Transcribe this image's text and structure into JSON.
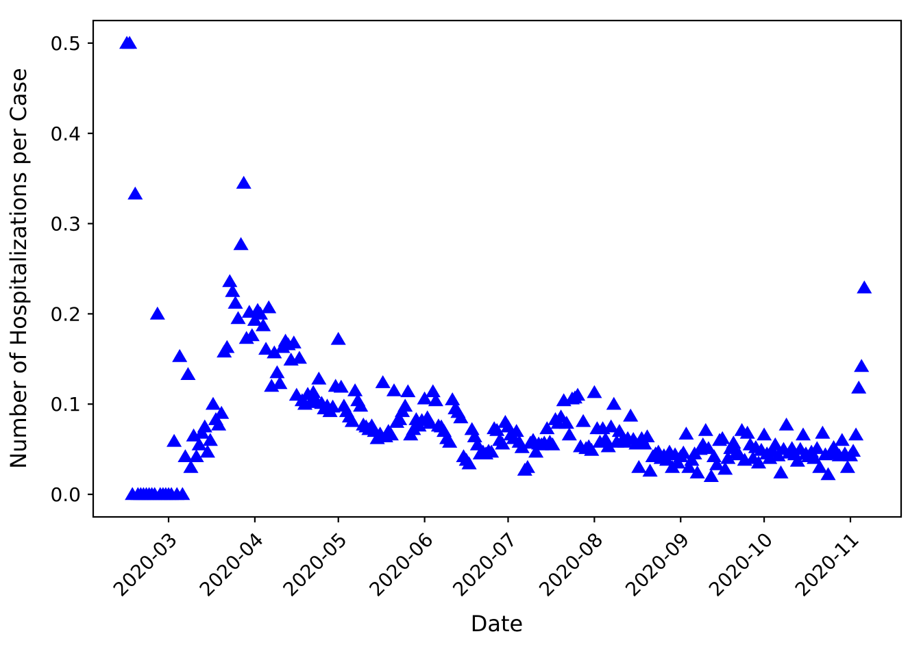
{
  "chart_data": {
    "type": "scatter",
    "title": "",
    "xlabel": "Date",
    "ylabel": "Number of Hospitalizations per Case",
    "marker": "triangle-up",
    "marker_color": "#0000FF",
    "background_color": "#ffffff",
    "spine_color": "#000000",
    "grid": false,
    "legend": null,
    "x_tick_labels": [
      "2020-03",
      "2020-04",
      "2020-05",
      "2020-06",
      "2020-07",
      "2020-08",
      "2020-09",
      "2020-10",
      "2020-11"
    ],
    "y_tick_labels": [
      "0.0",
      "0.1",
      "0.2",
      "0.3",
      "0.4",
      "0.5"
    ],
    "y_tick_values": [
      0.0,
      0.1,
      0.2,
      0.3,
      0.4,
      0.5
    ],
    "ylim": [
      -0.025,
      0.525
    ],
    "xlim": [
      "2020-02-02",
      "2020-11-19"
    ],
    "points": [
      [
        "2020-02-15",
        0.5
      ],
      [
        "2020-02-16",
        0.5
      ],
      [
        "2020-02-17",
        0
      ],
      [
        "2020-02-18",
        0.333
      ],
      [
        "2020-02-19",
        0
      ],
      [
        "2020-02-20",
        0
      ],
      [
        "2020-02-21",
        0
      ],
      [
        "2020-02-22",
        0
      ],
      [
        "2020-02-23",
        0
      ],
      [
        "2020-02-24",
        0
      ],
      [
        "2020-02-25",
        0
      ],
      [
        "2020-02-26",
        0.2
      ],
      [
        "2020-02-27",
        0
      ],
      [
        "2020-02-28",
        0
      ],
      [
        "2020-02-29",
        0
      ],
      [
        "2020-03-01",
        0
      ],
      [
        "2020-03-02",
        0
      ],
      [
        "2020-03-03",
        0.059
      ],
      [
        "2020-03-04",
        0
      ],
      [
        "2020-03-05",
        0.153
      ],
      [
        "2020-03-06",
        0
      ],
      [
        "2020-03-07",
        0.042
      ],
      [
        "2020-03-08",
        0.133
      ],
      [
        "2020-03-09",
        0.03
      ],
      [
        "2020-03-10",
        0.065
      ],
      [
        "2020-03-11",
        0.042
      ],
      [
        "2020-03-12",
        0.055
      ],
      [
        "2020-03-13",
        0.068
      ],
      [
        "2020-03-14",
        0.075
      ],
      [
        "2020-03-15",
        0.047
      ],
      [
        "2020-03-16",
        0.06
      ],
      [
        "2020-03-17",
        0.1
      ],
      [
        "2020-03-18",
        0.083
      ],
      [
        "2020-03-19",
        0.077
      ],
      [
        "2020-03-20",
        0.09
      ],
      [
        "2020-03-21",
        0.158
      ],
      [
        "2020-03-22",
        0.163
      ],
      [
        "2020-03-23",
        0.236
      ],
      [
        "2020-03-24",
        0.225
      ],
      [
        "2020-03-25",
        0.212
      ],
      [
        "2020-03-26",
        0.195
      ],
      [
        "2020-03-27",
        0.277
      ],
      [
        "2020-03-28",
        0.345
      ],
      [
        "2020-03-29",
        0.173
      ],
      [
        "2020-03-30",
        0.202
      ],
      [
        "2020-03-31",
        0.176
      ],
      [
        "2020-04-01",
        0.193
      ],
      [
        "2020-04-02",
        0.204
      ],
      [
        "2020-04-03",
        0.2
      ],
      [
        "2020-04-04",
        0.187
      ],
      [
        "2020-04-05",
        0.161
      ],
      [
        "2020-04-06",
        0.207
      ],
      [
        "2020-04-07",
        0.12
      ],
      [
        "2020-04-08",
        0.157
      ],
      [
        "2020-04-09",
        0.135
      ],
      [
        "2020-04-10",
        0.123
      ],
      [
        "2020-04-11",
        0.163
      ],
      [
        "2020-04-12",
        0.17
      ],
      [
        "2020-04-13",
        0.166
      ],
      [
        "2020-04-14",
        0.149
      ],
      [
        "2020-04-15",
        0.168
      ],
      [
        "2020-04-16",
        0.11
      ],
      [
        "2020-04-17",
        0.151
      ],
      [
        "2020-04-18",
        0.104
      ],
      [
        "2020-04-19",
        0.1
      ],
      [
        "2020-04-20",
        0.111
      ],
      [
        "2020-04-21",
        0.102
      ],
      [
        "2020-04-22",
        0.113
      ],
      [
        "2020-04-23",
        0.104
      ],
      [
        "2020-04-24",
        0.128
      ],
      [
        "2020-04-25",
        0.101
      ],
      [
        "2020-04-26",
        0.095
      ],
      [
        "2020-04-27",
        0.098
      ],
      [
        "2020-04-28",
        0.092
      ],
      [
        "2020-04-29",
        0.097
      ],
      [
        "2020-04-30",
        0.12
      ],
      [
        "2020-05-01",
        0.172
      ],
      [
        "2020-05-02",
        0.119
      ],
      [
        "2020-05-03",
        0.098
      ],
      [
        "2020-05-04",
        0.092
      ],
      [
        "2020-05-05",
        0.086
      ],
      [
        "2020-05-06",
        0.081
      ],
      [
        "2020-05-07",
        0.115
      ],
      [
        "2020-05-08",
        0.104
      ],
      [
        "2020-05-09",
        0.098
      ],
      [
        "2020-05-10",
        0.077
      ],
      [
        "2020-05-11",
        0.075
      ],
      [
        "2020-05-12",
        0.072
      ],
      [
        "2020-05-13",
        0.076
      ],
      [
        "2020-05-14",
        0.07
      ],
      [
        "2020-05-15",
        0.062
      ],
      [
        "2020-05-16",
        0.067
      ],
      [
        "2020-05-17",
        0.124
      ],
      [
        "2020-05-18",
        0.064
      ],
      [
        "2020-05-19",
        0.07
      ],
      [
        "2020-05-20",
        0.066
      ],
      [
        "2020-05-21",
        0.115
      ],
      [
        "2020-05-22",
        0.08
      ],
      [
        "2020-05-23",
        0.083
      ],
      [
        "2020-05-24",
        0.092
      ],
      [
        "2020-05-25",
        0.098
      ],
      [
        "2020-05-26",
        0.114
      ],
      [
        "2020-05-27",
        0.066
      ],
      [
        "2020-05-28",
        0.072
      ],
      [
        "2020-05-29",
        0.083
      ],
      [
        "2020-05-30",
        0.076
      ],
      [
        "2020-05-31",
        0.082
      ],
      [
        "2020-06-01",
        0.106
      ],
      [
        "2020-06-02",
        0.085
      ],
      [
        "2020-06-03",
        0.079
      ],
      [
        "2020-06-04",
        0.114
      ],
      [
        "2020-06-05",
        0.104
      ],
      [
        "2020-06-06",
        0.076
      ],
      [
        "2020-06-07",
        0.075
      ],
      [
        "2020-06-08",
        0.07
      ],
      [
        "2020-06-09",
        0.062
      ],
      [
        "2020-06-10",
        0.058
      ],
      [
        "2020-06-11",
        0.105
      ],
      [
        "2020-06-12",
        0.095
      ],
      [
        "2020-06-13",
        0.091
      ],
      [
        "2020-06-14",
        0.085
      ],
      [
        "2020-06-15",
        0.042
      ],
      [
        "2020-06-16",
        0.038
      ],
      [
        "2020-06-17",
        0.034
      ],
      [
        "2020-06-18",
        0.072
      ],
      [
        "2020-06-19",
        0.064
      ],
      [
        "2020-06-20",
        0.055
      ],
      [
        "2020-06-21",
        0.045
      ],
      [
        "2020-06-22",
        0.047
      ],
      [
        "2020-06-23",
        0.045
      ],
      [
        "2020-06-24",
        0.048
      ],
      [
        "2020-06-25",
        0.047
      ],
      [
        "2020-06-26",
        0.073
      ],
      [
        "2020-06-27",
        0.071
      ],
      [
        "2020-06-28",
        0.06
      ],
      [
        "2020-06-29",
        0.056
      ],
      [
        "2020-06-30",
        0.08
      ],
      [
        "2020-07-01",
        0.075
      ],
      [
        "2020-07-02",
        0.066
      ],
      [
        "2020-07-03",
        0.062
      ],
      [
        "2020-07-04",
        0.07
      ],
      [
        "2020-07-05",
        0.058
      ],
      [
        "2020-07-06",
        0.052
      ],
      [
        "2020-07-07",
        0.027
      ],
      [
        "2020-07-08",
        0.03
      ],
      [
        "2020-07-09",
        0.057
      ],
      [
        "2020-07-10",
        0.06
      ],
      [
        "2020-07-11",
        0.047
      ],
      [
        "2020-07-12",
        0.056
      ],
      [
        "2020-07-13",
        0.055
      ],
      [
        "2020-07-14",
        0.057
      ],
      [
        "2020-07-15",
        0.073
      ],
      [
        "2020-07-16",
        0.058
      ],
      [
        "2020-07-17",
        0.055
      ],
      [
        "2020-07-18",
        0.083
      ],
      [
        "2020-07-19",
        0.079
      ],
      [
        "2020-07-20",
        0.086
      ],
      [
        "2020-07-21",
        0.104
      ],
      [
        "2020-07-22",
        0.079
      ],
      [
        "2020-07-23",
        0.066
      ],
      [
        "2020-07-24",
        0.106
      ],
      [
        "2020-07-25",
        0.107
      ],
      [
        "2020-07-26",
        0.11
      ],
      [
        "2020-07-27",
        0.053
      ],
      [
        "2020-07-28",
        0.081
      ],
      [
        "2020-07-29",
        0.051
      ],
      [
        "2020-07-30",
        0.053
      ],
      [
        "2020-07-31",
        0.049
      ],
      [
        "2020-08-01",
        0.113
      ],
      [
        "2020-08-02",
        0.073
      ],
      [
        "2020-08-03",
        0.058
      ],
      [
        "2020-08-04",
        0.073
      ],
      [
        "2020-08-05",
        0.061
      ],
      [
        "2020-08-06",
        0.053
      ],
      [
        "2020-08-07",
        0.075
      ],
      [
        "2020-08-08",
        0.1
      ],
      [
        "2020-08-09",
        0.058
      ],
      [
        "2020-08-10",
        0.07
      ],
      [
        "2020-08-11",
        0.06
      ],
      [
        "2020-08-12",
        0.058
      ],
      [
        "2020-08-13",
        0.062
      ],
      [
        "2020-08-14",
        0.087
      ],
      [
        "2020-08-15",
        0.061
      ],
      [
        "2020-08-16",
        0.056
      ],
      [
        "2020-08-17",
        0.03
      ],
      [
        "2020-08-18",
        0.062
      ],
      [
        "2020-08-19",
        0.056
      ],
      [
        "2020-08-20",
        0.064
      ],
      [
        "2020-08-21",
        0.026
      ],
      [
        "2020-08-22",
        0.042
      ],
      [
        "2020-08-23",
        0.045
      ],
      [
        "2020-08-24",
        0.047
      ],
      [
        "2020-08-25",
        0.04
      ],
      [
        "2020-08-26",
        0.043
      ],
      [
        "2020-08-27",
        0.038
      ],
      [
        "2020-08-28",
        0.047
      ],
      [
        "2020-08-29",
        0.03
      ],
      [
        "2020-08-30",
        0.044
      ],
      [
        "2020-08-31",
        0.035
      ],
      [
        "2020-09-01",
        0.042
      ],
      [
        "2020-09-02",
        0.046
      ],
      [
        "2020-09-03",
        0.067
      ],
      [
        "2020-09-04",
        0.03
      ],
      [
        "2020-09-05",
        0.038
      ],
      [
        "2020-09-06",
        0.045
      ],
      [
        "2020-09-07",
        0.024
      ],
      [
        "2020-09-08",
        0.05
      ],
      [
        "2020-09-09",
        0.055
      ],
      [
        "2020-09-10",
        0.071
      ],
      [
        "2020-09-11",
        0.051
      ],
      [
        "2020-09-12",
        0.02
      ],
      [
        "2020-09-13",
        0.042
      ],
      [
        "2020-09-14",
        0.033
      ],
      [
        "2020-09-15",
        0.06
      ],
      [
        "2020-09-16",
        0.062
      ],
      [
        "2020-09-17",
        0.028
      ],
      [
        "2020-09-18",
        0.04
      ],
      [
        "2020-09-19",
        0.051
      ],
      [
        "2020-09-20",
        0.057
      ],
      [
        "2020-09-21",
        0.046
      ],
      [
        "2020-09-22",
        0.044
      ],
      [
        "2020-09-23",
        0.071
      ],
      [
        "2020-09-24",
        0.038
      ],
      [
        "2020-09-25",
        0.068
      ],
      [
        "2020-09-26",
        0.055
      ],
      [
        "2020-09-27",
        0.04
      ],
      [
        "2020-09-28",
        0.052
      ],
      [
        "2020-09-29",
        0.035
      ],
      [
        "2020-09-30",
        0.049
      ],
      [
        "2020-10-01",
        0.066
      ],
      [
        "2020-10-02",
        0.045
      ],
      [
        "2020-10-03",
        0.04
      ],
      [
        "2020-10-04",
        0.048
      ],
      [
        "2020-10-05",
        0.055
      ],
      [
        "2020-10-06",
        0.043
      ],
      [
        "2020-10-07",
        0.024
      ],
      [
        "2020-10-08",
        0.05
      ],
      [
        "2020-10-09",
        0.077
      ],
      [
        "2020-10-10",
        0.046
      ],
      [
        "2020-10-11",
        0.051
      ],
      [
        "2020-10-12",
        0.044
      ],
      [
        "2020-10-13",
        0.037
      ],
      [
        "2020-10-14",
        0.05
      ],
      [
        "2020-10-15",
        0.066
      ],
      [
        "2020-10-16",
        0.045
      ],
      [
        "2020-10-17",
        0.042
      ],
      [
        "2020-10-18",
        0.047
      ],
      [
        "2020-10-19",
        0.04
      ],
      [
        "2020-10-20",
        0.051
      ],
      [
        "2020-10-21",
        0.03
      ],
      [
        "2020-10-22",
        0.068
      ],
      [
        "2020-10-23",
        0.044
      ],
      [
        "2020-10-24",
        0.022
      ],
      [
        "2020-10-25",
        0.047
      ],
      [
        "2020-10-26",
        0.052
      ],
      [
        "2020-10-27",
        0.045
      ],
      [
        "2020-10-28",
        0.043
      ],
      [
        "2020-10-29",
        0.06
      ],
      [
        "2020-10-30",
        0.045
      ],
      [
        "2020-10-31",
        0.03
      ],
      [
        "2020-11-01",
        0.043
      ],
      [
        "2020-11-02",
        0.048
      ],
      [
        "2020-11-03",
        0.066
      ],
      [
        "2020-11-04",
        0.118
      ],
      [
        "2020-11-05",
        0.142
      ],
      [
        "2020-11-06",
        0.229
      ]
    ]
  }
}
